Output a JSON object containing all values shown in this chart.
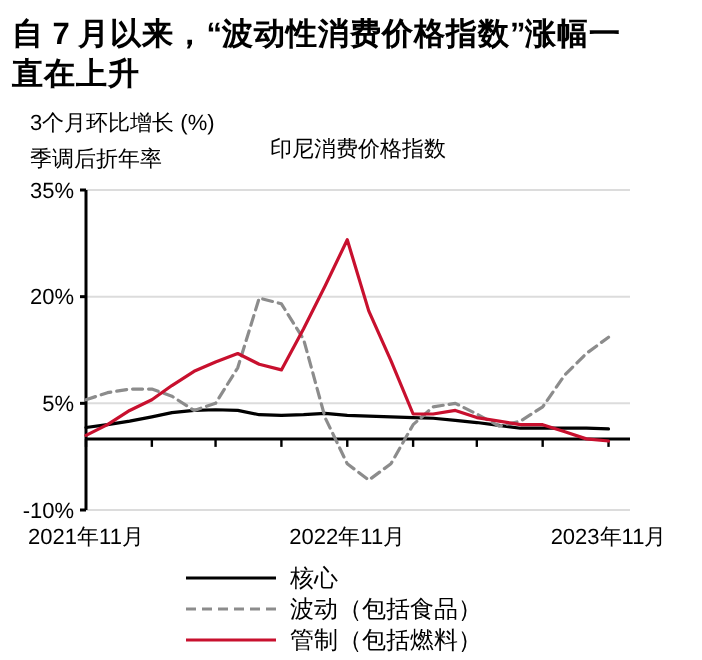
{
  "chart_data": {
    "type": "line",
    "title": "自 7 月以来，“波动性消费价格指数”涨幅一直在上升",
    "subtitle": "印尼消费价格指数",
    "ylabel": "3个月环比增长 (%)\n季调后折年率",
    "x": [
      "2021-11",
      "2021-12",
      "2022-01",
      "2022-02",
      "2022-03",
      "2022-04",
      "2022-05",
      "2022-06",
      "2022-07",
      "2022-08",
      "2022-09",
      "2022-10",
      "2022-11",
      "2022-12",
      "2023-01",
      "2023-02",
      "2023-03",
      "2023-04",
      "2023-05",
      "2023-06",
      "2023-07",
      "2023-08",
      "2023-09",
      "2023-10",
      "2023-11"
    ],
    "series": [
      {
        "name": "核心",
        "color": "#000000",
        "line_style": "solid",
        "values": [
          1.6,
          2.0,
          2.5,
          3.1,
          3.7,
          4.0,
          4.1,
          4.0,
          3.4,
          3.3,
          3.4,
          3.6,
          3.3,
          3.2,
          3.1,
          3.0,
          2.9,
          2.6,
          2.3,
          1.9,
          1.5,
          1.5,
          1.5,
          1.5,
          1.4
        ]
      },
      {
        "name": "波动（包括食品）",
        "color": "#8c8c8c",
        "line_style": "dashed",
        "values": [
          5.5,
          6.5,
          7.0,
          7.0,
          6.0,
          4.0,
          5.0,
          10.0,
          19.8,
          19.0,
          14.0,
          3.0,
          -3.5,
          -5.8,
          -3.5,
          2.0,
          4.5,
          5.0,
          3.5,
          1.8,
          2.5,
          4.5,
          9.0,
          12.0,
          14.3
        ]
      },
      {
        "name": "管制（包括燃料）",
        "color": "#c8102e",
        "line_style": "solid",
        "values": [
          0.5,
          2.0,
          4.0,
          5.5,
          7.5,
          9.5,
          10.8,
          12.0,
          10.5,
          9.7,
          15.5,
          21.5,
          28.0,
          18.0,
          11.0,
          3.5,
          3.5,
          4.0,
          3.0,
          2.5,
          2.0,
          2.0,
          1.0,
          0.0,
          -0.3
        ]
      }
    ],
    "xlim": [
      "2021-11",
      "2023-12"
    ],
    "xticks": [
      {
        "value": "2021-11",
        "label": "2021年11月"
      },
      {
        "value": "2022-02",
        "label": null
      },
      {
        "value": "2022-05",
        "label": null
      },
      {
        "value": "2022-08",
        "label": null
      },
      {
        "value": "2022-11",
        "label": "2022年11月"
      },
      {
        "value": "2023-02",
        "label": null
      },
      {
        "value": "2023-05",
        "label": null
      },
      {
        "value": "2023-08",
        "label": null
      },
      {
        "value": "2023-11",
        "label": "2023年11月"
      }
    ],
    "ylim": [
      -10,
      35
    ],
    "yticks": [
      {
        "value": 35,
        "label": "35%"
      },
      {
        "value": 20,
        "label": "20%"
      },
      {
        "value": 5,
        "label": "5%"
      },
      {
        "value": -10,
        "label": "-10%"
      }
    ],
    "grid": "y",
    "legend": "bottom",
    "marker": "none"
  }
}
